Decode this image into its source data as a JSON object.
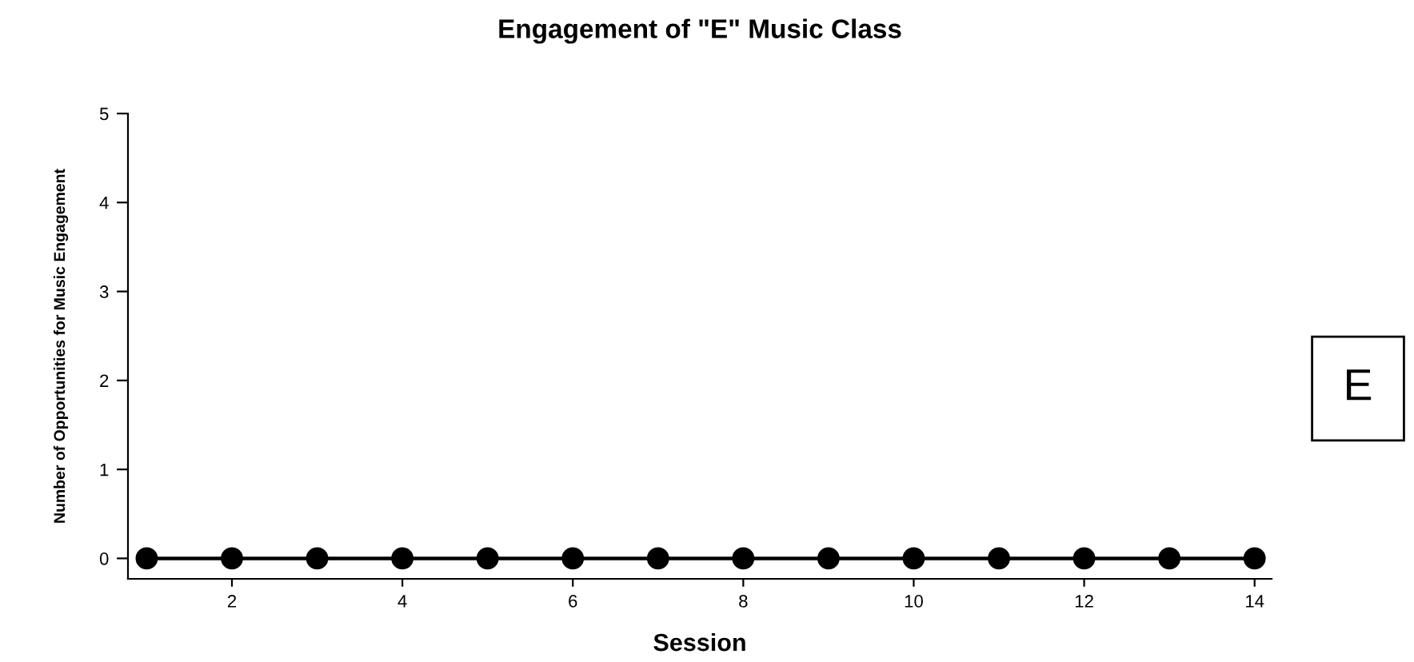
{
  "chart_data": {
    "type": "line",
    "title": "Engagement of \"E\" Music Class",
    "xlabel": "Session",
    "ylabel": "Number of Opportunities for Music Engagement",
    "x": [
      1,
      2,
      3,
      4,
      5,
      6,
      7,
      8,
      9,
      10,
      11,
      12,
      13,
      14
    ],
    "series": [
      {
        "color": "#000000",
        "values": [
          0,
          0,
          0,
          0,
          0,
          0,
          0,
          0,
          0,
          0,
          0,
          0,
          0,
          0
        ]
      }
    ],
    "xlim": [
      0.78,
      14.2
    ],
    "xticks": [
      2,
      4,
      6,
      8,
      10,
      12,
      14
    ],
    "ylim": [
      -0.23,
      5
    ],
    "yticks": [
      0,
      1,
      2,
      3,
      4,
      5
    ],
    "marker": "circle",
    "line_style": "solid",
    "grid": false,
    "annotations": [
      "E"
    ]
  }
}
